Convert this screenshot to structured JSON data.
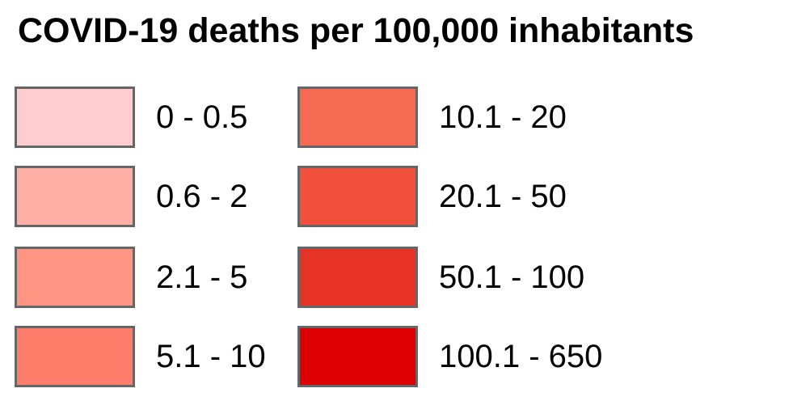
{
  "legend": {
    "title": "COVID-19 deaths per 100,000 inhabitants",
    "items": [
      {
        "label": "0 - 0.5",
        "color": "#ffcdcd"
      },
      {
        "label": "0.6 - 2",
        "color": "#ffafa6"
      },
      {
        "label": "2.1 - 5",
        "color": "#fe9582"
      },
      {
        "label": "5.1 - 10",
        "color": "#fd7e6b"
      },
      {
        "label": "10.1 - 20",
        "color": "#f56a50"
      },
      {
        "label": "20.1 - 50",
        "color": "#f0503c"
      },
      {
        "label": "50.1 - 100",
        "color": "#e63326"
      },
      {
        "label": "100.1 - 650",
        "color": "#dc0005"
      }
    ]
  }
}
